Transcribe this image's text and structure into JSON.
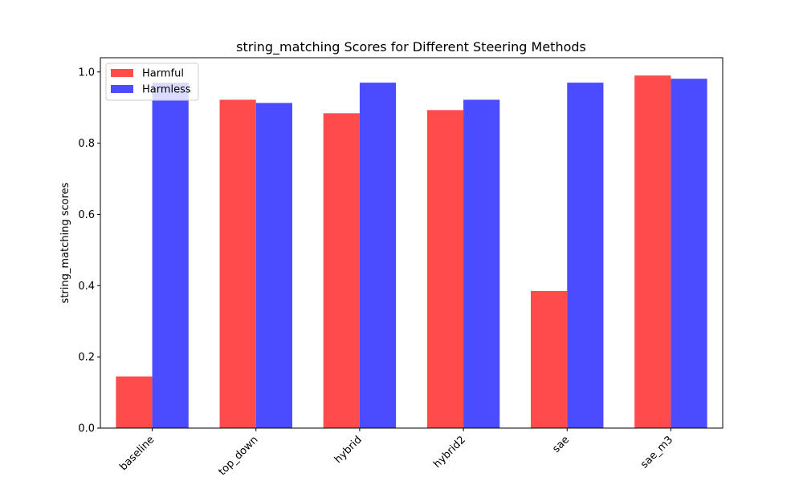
{
  "chart_data": {
    "type": "bar",
    "title": "string_matching Scores for Different Steering Methods",
    "xlabel": "",
    "ylabel": "string_matching scores",
    "categories": [
      "baseline",
      "top_down",
      "hybrid",
      "hybrid2",
      "sae",
      "sae_m3"
    ],
    "series": [
      {
        "name": "Harmful",
        "color": "#ff4b4b",
        "values": [
          0.145,
          0.922,
          0.884,
          0.893,
          0.385,
          0.99
        ]
      },
      {
        "name": "Harmless",
        "color": "#4b4bff",
        "values": [
          0.97,
          0.913,
          0.97,
          0.922,
          0.97,
          0.981
        ]
      }
    ],
    "ylim": [
      0,
      1.04
    ],
    "yticks": [
      0.0,
      0.2,
      0.4,
      0.6,
      0.8,
      1.0
    ],
    "ytick_labels": [
      "0.0",
      "0.2",
      "0.4",
      "0.6",
      "0.8",
      "1.0"
    ],
    "legend_position": "top-left",
    "grid": false
  }
}
